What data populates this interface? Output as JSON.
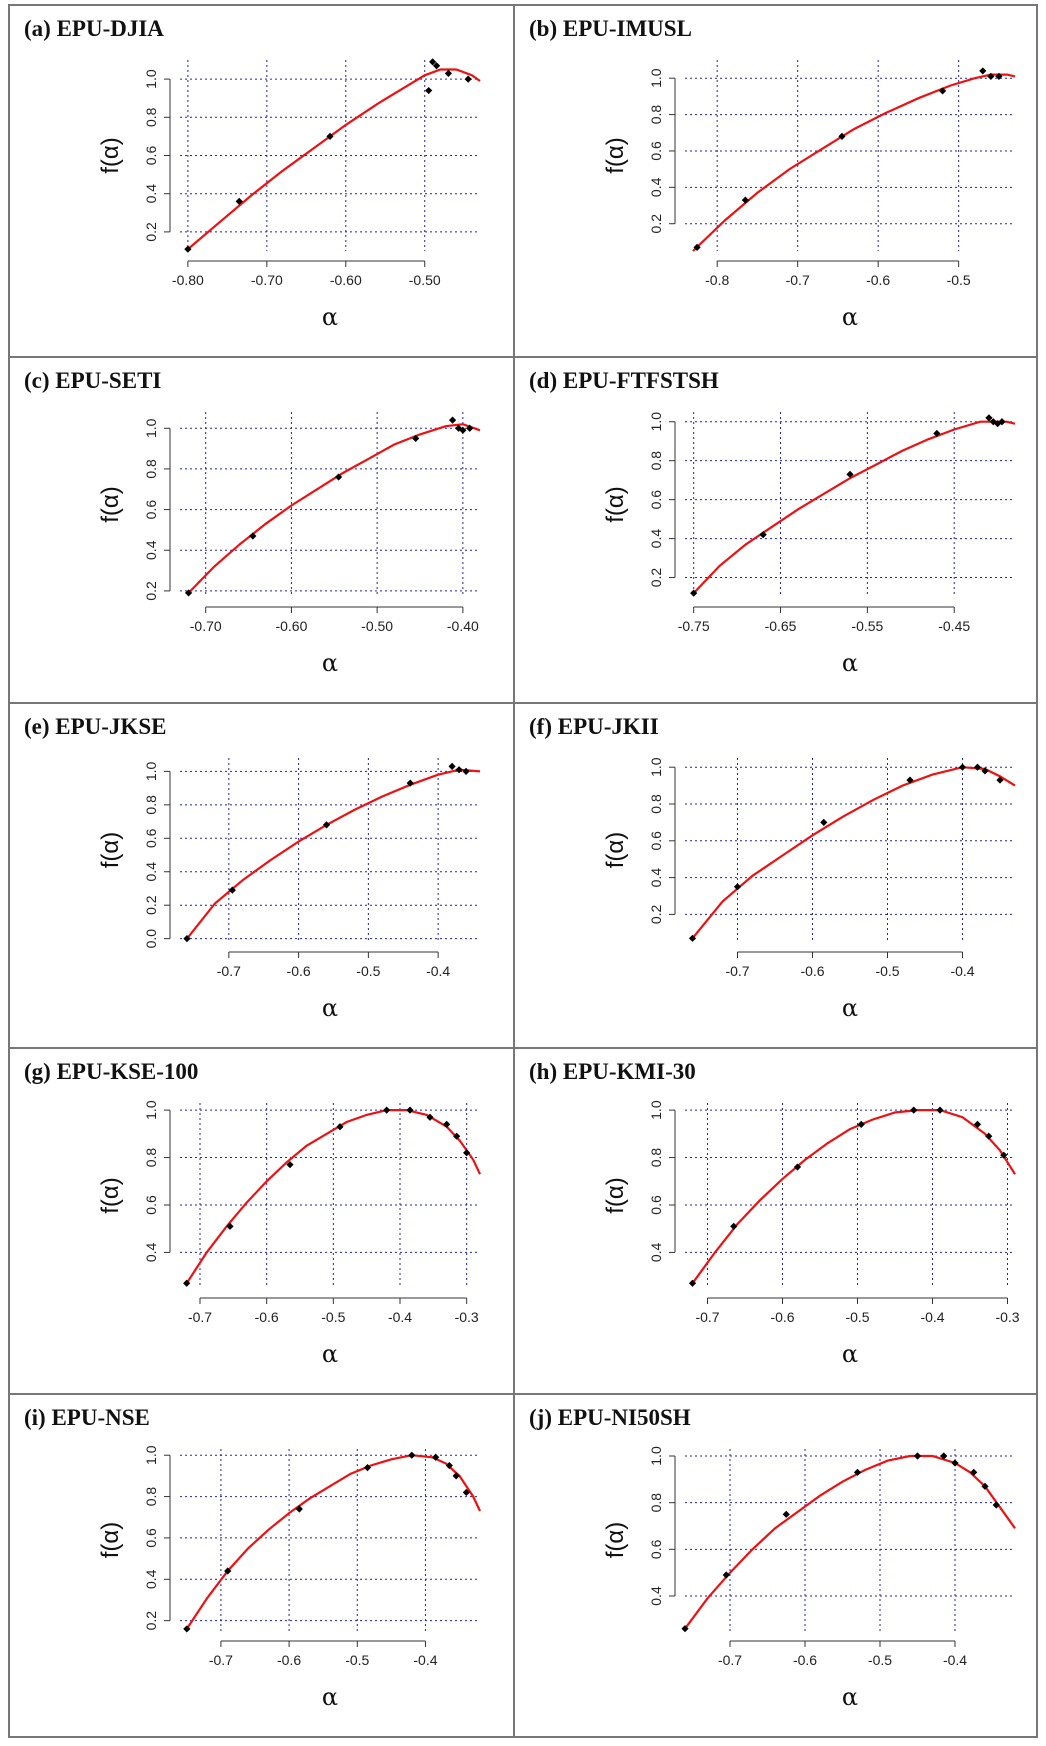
{
  "chart_data": [
    {
      "type": "scatter",
      "title": "(a) EPU-DJIA",
      "xlabel": "α",
      "ylabel": "f(α)",
      "xlim": [
        -0.81,
        -0.43
      ],
      "ylim": [
        0.1,
        1.1
      ],
      "xticks": [
        -0.8,
        -0.7,
        -0.6,
        -0.5
      ],
      "xtick_labels": [
        "-0.80",
        "-0.70",
        "-0.60",
        "-0.50"
      ],
      "yticks": [
        0.2,
        0.4,
        0.6,
        0.8,
        1.0
      ],
      "ytick_labels": [
        "0.2",
        "0.4",
        "0.6",
        "0.8",
        "1.0"
      ],
      "grid": true,
      "points_x": [
        -0.8,
        -0.735,
        -0.62,
        -0.495,
        -0.49,
        -0.485,
        -0.47,
        -0.445
      ],
      "points_y": [
        0.11,
        0.36,
        0.7,
        0.94,
        1.09,
        1.07,
        1.03,
        1.0
      ],
      "fit_x": [
        -0.8,
        -0.76,
        -0.72,
        -0.68,
        -0.64,
        -0.6,
        -0.56,
        -0.52,
        -0.5,
        -0.48,
        -0.46,
        -0.44,
        -0.43
      ],
      "fit_y": [
        0.11,
        0.25,
        0.39,
        0.52,
        0.64,
        0.76,
        0.87,
        0.97,
        1.02,
        1.05,
        1.05,
        1.02,
        0.99
      ],
      "colors": {
        "fit": "#ee1111",
        "points": "#000000",
        "grid": "#2222aa"
      }
    },
    {
      "type": "scatter",
      "title": "(b) EPU-IMUSL",
      "xlabel": "α",
      "ylabel": "f(α)",
      "xlim": [
        -0.84,
        -0.43
      ],
      "ylim": [
        0.05,
        1.1
      ],
      "xticks": [
        -0.8,
        -0.7,
        -0.6,
        -0.5
      ],
      "xtick_labels": [
        "-0.8",
        "-0.7",
        "-0.6",
        "-0.5"
      ],
      "yticks": [
        0.2,
        0.4,
        0.6,
        0.8,
        1.0
      ],
      "ytick_labels": [
        "0.2",
        "0.4",
        "0.6",
        "0.8",
        "1.0"
      ],
      "grid": true,
      "points_x": [
        -0.825,
        -0.765,
        -0.645,
        -0.52,
        -0.47,
        -0.46,
        -0.45
      ],
      "points_y": [
        0.07,
        0.33,
        0.68,
        0.93,
        1.04,
        1.01,
        1.01
      ],
      "fit_x": [
        -0.83,
        -0.79,
        -0.75,
        -0.71,
        -0.67,
        -0.63,
        -0.59,
        -0.55,
        -0.51,
        -0.48,
        -0.46,
        -0.44,
        -0.43
      ],
      "fit_y": [
        0.05,
        0.22,
        0.37,
        0.5,
        0.61,
        0.72,
        0.81,
        0.89,
        0.96,
        1.0,
        1.02,
        1.02,
        1.01
      ],
      "colors": {
        "fit": "#ee1111",
        "points": "#000000",
        "grid": "#2222aa"
      }
    },
    {
      "type": "scatter",
      "title": "(c) EPU-SETI",
      "xlabel": "α",
      "ylabel": "f(α)",
      "xlim": [
        -0.73,
        -0.38
      ],
      "ylim": [
        0.17,
        1.08
      ],
      "xticks": [
        -0.7,
        -0.6,
        -0.5,
        -0.4
      ],
      "xtick_labels": [
        "-0.70",
        "-0.60",
        "-0.50",
        "-0.40"
      ],
      "yticks": [
        0.2,
        0.4,
        0.6,
        0.8,
        1.0
      ],
      "ytick_labels": [
        "0.2",
        "0.4",
        "0.6",
        "0.8",
        "1.0"
      ],
      "grid": true,
      "points_x": [
        -0.72,
        -0.645,
        -0.545,
        -0.455,
        -0.412,
        -0.405,
        -0.4,
        -0.392
      ],
      "points_y": [
        0.19,
        0.47,
        0.76,
        0.95,
        1.04,
        1.0,
        0.99,
        1.0
      ],
      "fit_x": [
        -0.72,
        -0.69,
        -0.66,
        -0.63,
        -0.6,
        -0.57,
        -0.54,
        -0.51,
        -0.48,
        -0.45,
        -0.42,
        -0.4,
        -0.38
      ],
      "fit_y": [
        0.19,
        0.32,
        0.43,
        0.53,
        0.62,
        0.7,
        0.78,
        0.85,
        0.92,
        0.97,
        1.01,
        1.02,
        0.99
      ],
      "colors": {
        "fit": "#ee1111",
        "points": "#000000",
        "grid": "#2222aa"
      }
    },
    {
      "type": "scatter",
      "title": "(d) EPU-FTFSTSH",
      "xlabel": "α",
      "ylabel": "f(α)",
      "xlim": [
        -0.76,
        -0.38
      ],
      "ylim": [
        0.1,
        1.05
      ],
      "xticks": [
        -0.75,
        -0.65,
        -0.55,
        -0.45
      ],
      "xtick_labels": [
        "-0.75",
        "-0.65",
        "-0.55",
        "-0.45"
      ],
      "yticks": [
        0.2,
        0.4,
        0.6,
        0.8,
        1.0
      ],
      "ytick_labels": [
        "0.2",
        "0.4",
        "0.6",
        "0.8",
        "1.0"
      ],
      "grid": true,
      "points_x": [
        -0.75,
        -0.67,
        -0.57,
        -0.47,
        -0.41,
        -0.405,
        -0.4,
        -0.395
      ],
      "points_y": [
        0.12,
        0.42,
        0.73,
        0.94,
        1.02,
        1.0,
        0.99,
        1.0
      ],
      "fit_x": [
        -0.75,
        -0.72,
        -0.69,
        -0.66,
        -0.63,
        -0.6,
        -0.57,
        -0.54,
        -0.51,
        -0.48,
        -0.45,
        -0.42,
        -0.39,
        -0.38
      ],
      "fit_y": [
        0.12,
        0.26,
        0.37,
        0.46,
        0.55,
        0.63,
        0.71,
        0.78,
        0.85,
        0.91,
        0.96,
        1.0,
        1.0,
        0.99
      ],
      "colors": {
        "fit": "#ee1111",
        "points": "#000000",
        "grid": "#2222aa"
      }
    },
    {
      "type": "scatter",
      "title": "(e) EPU-JKSE",
      "xlabel": "α",
      "ylabel": "f(α)",
      "xlim": [
        -0.77,
        -0.34
      ],
      "ylim": [
        -0.02,
        1.08
      ],
      "xticks": [
        -0.7,
        -0.6,
        -0.5,
        -0.4
      ],
      "xtick_labels": [
        "-0.7",
        "-0.6",
        "-0.5",
        "-0.4"
      ],
      "yticks": [
        0.0,
        0.2,
        0.4,
        0.6,
        0.8,
        1.0
      ],
      "ytick_labels": [
        "0.0",
        "0.2",
        "0.4",
        "0.6",
        "0.8",
        "1.0"
      ],
      "grid": true,
      "points_x": [
        -0.76,
        -0.695,
        -0.56,
        -0.44,
        -0.38,
        -0.37,
        -0.36
      ],
      "points_y": [
        0.0,
        0.29,
        0.68,
        0.93,
        1.03,
        1.01,
        1.0
      ],
      "fit_x": [
        -0.76,
        -0.72,
        -0.68,
        -0.64,
        -0.6,
        -0.56,
        -0.52,
        -0.48,
        -0.44,
        -0.4,
        -0.37,
        -0.34
      ],
      "fit_y": [
        0.0,
        0.21,
        0.35,
        0.47,
        0.58,
        0.68,
        0.77,
        0.85,
        0.92,
        0.98,
        1.01,
        1.0
      ],
      "colors": {
        "fit": "#ee1111",
        "points": "#000000",
        "grid": "#2222aa"
      }
    },
    {
      "type": "scatter",
      "title": "(f) EPU-JKII",
      "xlabel": "α",
      "ylabel": "f(α)",
      "xlim": [
        -0.77,
        -0.33
      ],
      "ylim": [
        0.05,
        1.05
      ],
      "xticks": [
        -0.7,
        -0.6,
        -0.5,
        -0.4
      ],
      "xtick_labels": [
        "-0.7",
        "-0.6",
        "-0.5",
        "-0.4"
      ],
      "yticks": [
        0.2,
        0.4,
        0.6,
        0.8,
        1.0
      ],
      "ytick_labels": [
        "0.2",
        "0.4",
        "0.6",
        "0.8",
        "1.0"
      ],
      "grid": true,
      "points_x": [
        -0.76,
        -0.7,
        -0.585,
        -0.47,
        -0.4,
        -0.38,
        -0.37,
        -0.35
      ],
      "points_y": [
        0.07,
        0.35,
        0.7,
        0.93,
        1.0,
        1.0,
        0.98,
        0.93
      ],
      "fit_x": [
        -0.76,
        -0.72,
        -0.68,
        -0.64,
        -0.6,
        -0.56,
        -0.52,
        -0.48,
        -0.44,
        -0.4,
        -0.37,
        -0.35,
        -0.33
      ],
      "fit_y": [
        0.07,
        0.27,
        0.41,
        0.52,
        0.63,
        0.73,
        0.82,
        0.9,
        0.96,
        1.0,
        0.99,
        0.95,
        0.9
      ],
      "colors": {
        "fit": "#ee1111",
        "points": "#000000",
        "grid": "#2222aa"
      }
    },
    {
      "type": "scatter",
      "title": "(g) EPU-KSE-100",
      "xlabel": "α",
      "ylabel": "f(α)",
      "xlim": [
        -0.73,
        -0.28
      ],
      "ylim": [
        0.25,
        1.03
      ],
      "xticks": [
        -0.7,
        -0.6,
        -0.5,
        -0.4,
        -0.3
      ],
      "xtick_labels": [
        "-0.7",
        "-0.6",
        "-0.5",
        "-0.4",
        "-0.3"
      ],
      "yticks": [
        0.4,
        0.6,
        0.8,
        1.0
      ],
      "ytick_labels": [
        "0.4",
        "0.6",
        "0.8",
        "1.0"
      ],
      "grid": true,
      "points_x": [
        -0.72,
        -0.655,
        -0.565,
        -0.49,
        -0.42,
        -0.385,
        -0.355,
        -0.33,
        -0.315,
        -0.3
      ],
      "points_y": [
        0.27,
        0.51,
        0.77,
        0.93,
        1.0,
        1.0,
        0.97,
        0.94,
        0.89,
        0.82
      ],
      "fit_x": [
        -0.72,
        -0.69,
        -0.66,
        -0.63,
        -0.6,
        -0.57,
        -0.54,
        -0.51,
        -0.48,
        -0.45,
        -0.42,
        -0.39,
        -0.36,
        -0.33,
        -0.31,
        -0.29,
        -0.28
      ],
      "fit_y": [
        0.27,
        0.4,
        0.51,
        0.61,
        0.7,
        0.78,
        0.85,
        0.9,
        0.95,
        0.98,
        1.0,
        1.0,
        0.98,
        0.93,
        0.87,
        0.79,
        0.73
      ],
      "colors": {
        "fit": "#ee1111",
        "points": "#000000",
        "grid": "#2222aa"
      }
    },
    {
      "type": "scatter",
      "title": "(h) EPU-KMI-30",
      "xlabel": "α",
      "ylabel": "f(α)",
      "xlim": [
        -0.73,
        -0.29
      ],
      "ylim": [
        0.25,
        1.03
      ],
      "xticks": [
        -0.7,
        -0.6,
        -0.5,
        -0.4,
        -0.3
      ],
      "xtick_labels": [
        "-0.7",
        "-0.6",
        "-0.5",
        "-0.4",
        "-0.3"
      ],
      "yticks": [
        0.4,
        0.6,
        0.8,
        1.0
      ],
      "ytick_labels": [
        "0.4",
        "0.6",
        "0.8",
        "1.0"
      ],
      "grid": true,
      "points_x": [
        -0.72,
        -0.665,
        -0.58,
        -0.495,
        -0.425,
        -0.39,
        -0.34,
        -0.325,
        -0.305
      ],
      "points_y": [
        0.27,
        0.51,
        0.76,
        0.94,
        1.0,
        1.0,
        0.94,
        0.89,
        0.81
      ],
      "fit_x": [
        -0.72,
        -0.69,
        -0.66,
        -0.63,
        -0.6,
        -0.57,
        -0.54,
        -0.51,
        -0.48,
        -0.45,
        -0.42,
        -0.39,
        -0.36,
        -0.33,
        -0.31,
        -0.3,
        -0.29
      ],
      "fit_y": [
        0.27,
        0.4,
        0.52,
        0.62,
        0.71,
        0.79,
        0.86,
        0.92,
        0.96,
        0.99,
        1.0,
        1.0,
        0.97,
        0.9,
        0.83,
        0.78,
        0.73
      ],
      "colors": {
        "fit": "#ee1111",
        "points": "#000000",
        "grid": "#2222aa"
      }
    },
    {
      "type": "scatter",
      "title": "(i) EPU-NSE",
      "xlabel": "α",
      "ylabel": "f(α)",
      "xlim": [
        -0.76,
        -0.32
      ],
      "ylim": [
        0.15,
        1.03
      ],
      "xticks": [
        -0.7,
        -0.6,
        -0.5,
        -0.4
      ],
      "xtick_labels": [
        "-0.7",
        "-0.6",
        "-0.5",
        "-0.4"
      ],
      "yticks": [
        0.2,
        0.4,
        0.6,
        0.8,
        1.0
      ],
      "ytick_labels": [
        "0.2",
        "0.4",
        "0.6",
        "0.8",
        "1.0"
      ],
      "grid": true,
      "points_x": [
        -0.75,
        -0.69,
        -0.585,
        -0.485,
        -0.42,
        -0.385,
        -0.365,
        -0.355,
        -0.34
      ],
      "points_y": [
        0.16,
        0.44,
        0.74,
        0.94,
        1.0,
        0.99,
        0.95,
        0.9,
        0.82
      ],
      "fit_x": [
        -0.75,
        -0.72,
        -0.69,
        -0.66,
        -0.63,
        -0.6,
        -0.57,
        -0.54,
        -0.51,
        -0.48,
        -0.45,
        -0.42,
        -0.39,
        -0.37,
        -0.35,
        -0.33,
        -0.32
      ],
      "fit_y": [
        0.16,
        0.31,
        0.44,
        0.55,
        0.64,
        0.72,
        0.79,
        0.85,
        0.91,
        0.95,
        0.98,
        1.0,
        0.99,
        0.96,
        0.9,
        0.8,
        0.73
      ],
      "colors": {
        "fit": "#ee1111",
        "points": "#000000",
        "grid": "#2222aa"
      }
    },
    {
      "type": "scatter",
      "title": "(j) EPU-NI50SH",
      "xlabel": "α",
      "ylabel": "f(α)",
      "xlim": [
        -0.76,
        -0.32
      ],
      "ylim": [
        0.25,
        1.03
      ],
      "xticks": [
        -0.7,
        -0.6,
        -0.5,
        -0.4
      ],
      "xtick_labels": [
        "-0.7",
        "-0.6",
        "-0.5",
        "-0.4"
      ],
      "yticks": [
        0.4,
        0.6,
        0.8,
        1.0
      ],
      "ytick_labels": [
        "0.4",
        "0.6",
        "0.8",
        "1.0"
      ],
      "grid": true,
      "points_x": [
        -0.76,
        -0.705,
        -0.625,
        -0.53,
        -0.45,
        -0.415,
        -0.4,
        -0.375,
        -0.36,
        -0.345
      ],
      "points_y": [
        0.26,
        0.49,
        0.75,
        0.93,
        1.0,
        1.0,
        0.97,
        0.93,
        0.87,
        0.79
      ],
      "fit_x": [
        -0.76,
        -0.73,
        -0.7,
        -0.67,
        -0.64,
        -0.61,
        -0.58,
        -0.55,
        -0.52,
        -0.49,
        -0.46,
        -0.43,
        -0.4,
        -0.38,
        -0.36,
        -0.34,
        -0.32
      ],
      "fit_y": [
        0.26,
        0.39,
        0.5,
        0.6,
        0.69,
        0.76,
        0.83,
        0.89,
        0.94,
        0.98,
        1.0,
        1.0,
        0.97,
        0.93,
        0.87,
        0.78,
        0.69
      ],
      "colors": {
        "fit": "#ee1111",
        "points": "#000000",
        "grid": "#2222aa"
      }
    }
  ]
}
